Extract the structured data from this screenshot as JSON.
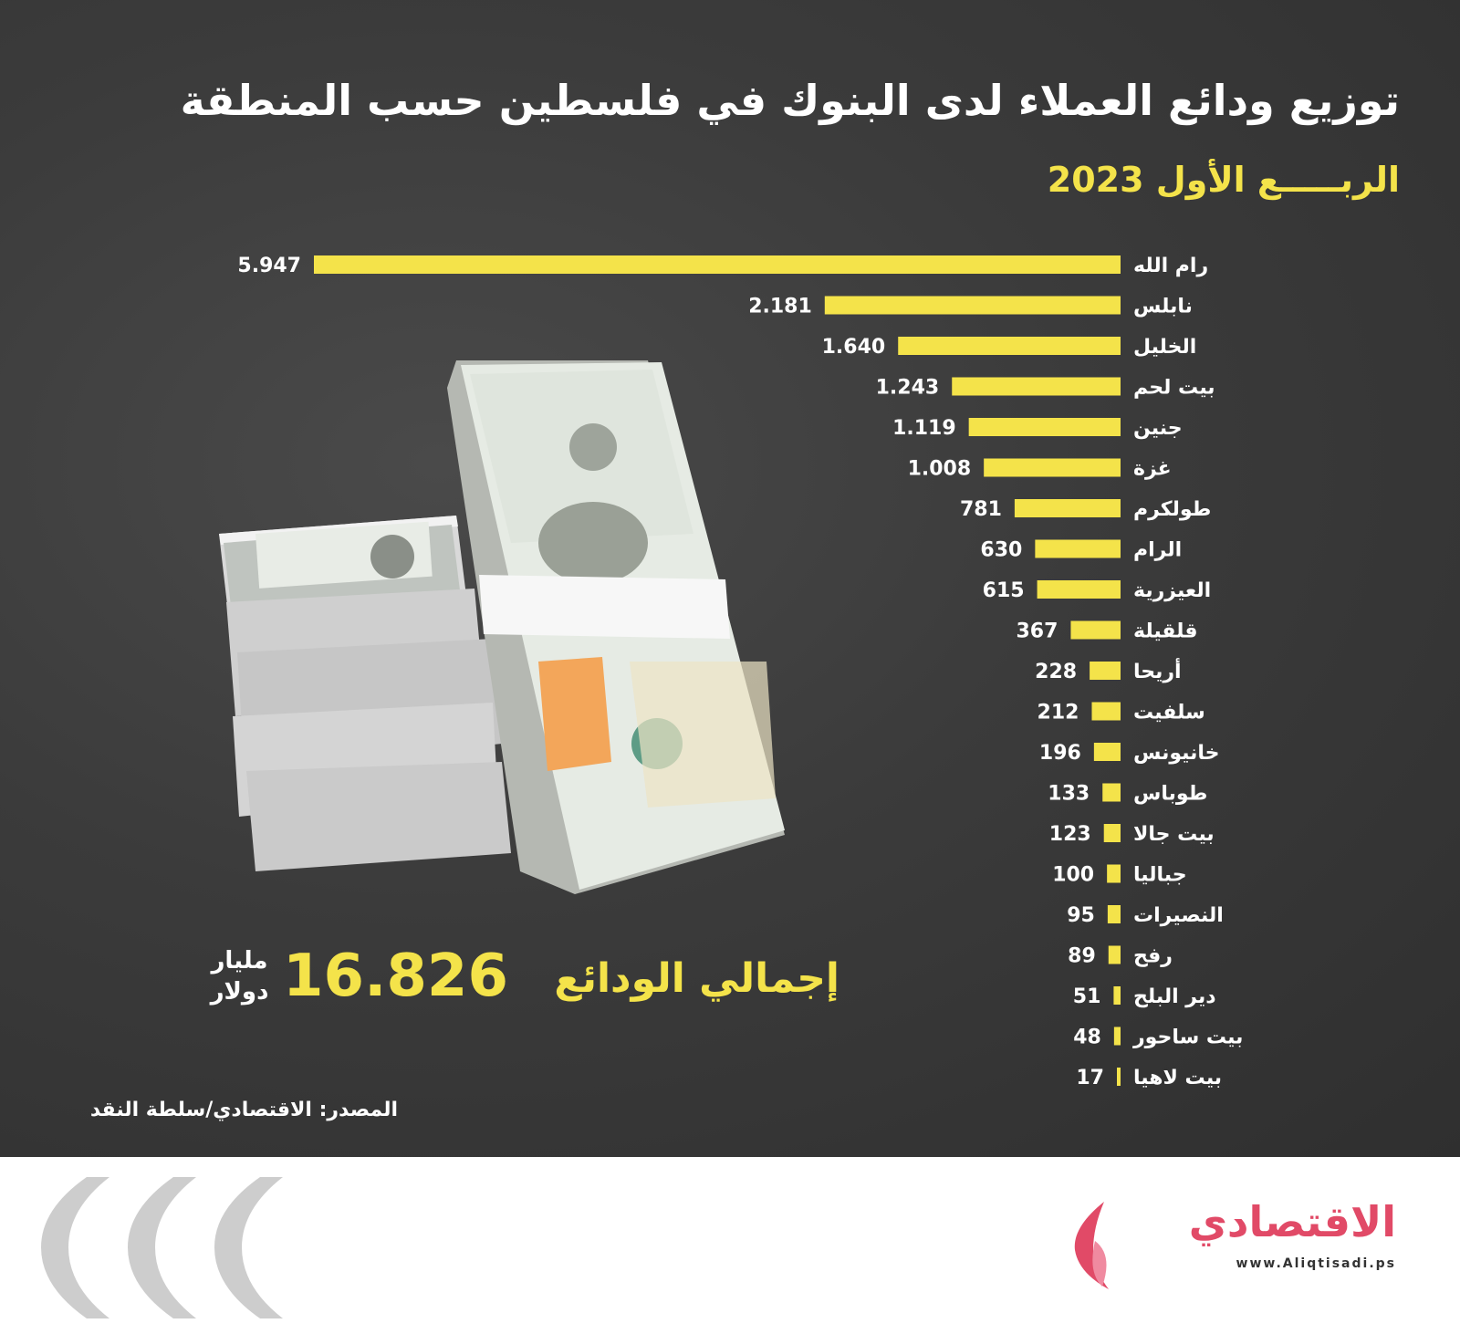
{
  "header": {
    "title": "توزيع ودائع العملاء لدى البنوك في فلسطين حسب المنطقة",
    "subtitle": "الربـــــع الأول 2023"
  },
  "chart_data": {
    "type": "bar",
    "orientation": "horizontal",
    "categories": [
      "رام الله",
      "نابلس",
      "الخليل",
      "بيت لحم",
      "جنين",
      "غزة",
      "طولكرم",
      "الرام",
      "العيزرية",
      "قلقيلة",
      "أريحا",
      "سلفيت",
      "خانيونس",
      "طوباس",
      "بيت جالا",
      "جباليا",
      "النصيرات",
      "رفح",
      "دير البلح",
      "بيت ساحور",
      "بيت لاهيا"
    ],
    "values": [
      5947,
      2181,
      1640,
      1243,
      1119,
      1008,
      781,
      630,
      615,
      367,
      228,
      212,
      196,
      133,
      123,
      100,
      95,
      89,
      51,
      48,
      17
    ],
    "value_labels": [
      "5.947",
      "2.181",
      "1.640",
      "1.243",
      "1.119",
      "1.008",
      "781",
      "630",
      "615",
      "367",
      "228",
      "212",
      "196",
      "133",
      "123",
      "100",
      "95",
      "89",
      "51",
      "48",
      "17"
    ],
    "bar_color": "#f4e34a",
    "grid": false,
    "legend": "none"
  },
  "total": {
    "label": "إجمالي الودائع",
    "value": "16.826",
    "unit_line1": "مليار",
    "unit_line2": "دولار"
  },
  "source": "المصدر: الاقتصادي/سلطة النقد",
  "footer": {
    "logo_text": "الاقتصادي",
    "logo_url": "www.Aliqtisadi.ps",
    "chevrons_icon": "chevrons-icon"
  },
  "colors": {
    "background": "#3b3b3b",
    "accent": "#f4e34a",
    "brand": "#e14a67"
  }
}
